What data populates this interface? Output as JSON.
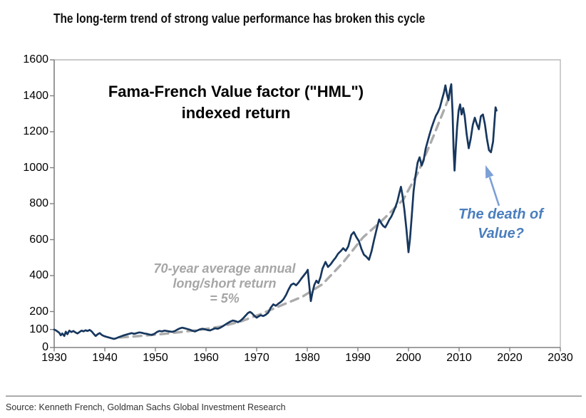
{
  "page": {
    "title": "The long-term trend of strong value performance has broken this cycle",
    "source": "Source: Kenneth French, Goldman Sachs Global Investment Research"
  },
  "chart_data": {
    "type": "line",
    "title_lines": [
      "Fama-French Value factor (\"HML\")",
      "indexed return"
    ],
    "xlabel": "",
    "ylabel": "",
    "xlim": [
      1930,
      2030
    ],
    "ylim": [
      0,
      1600
    ],
    "grid": false,
    "legend": "none",
    "x_ticks": [
      1930,
      1940,
      1950,
      1960,
      1970,
      1980,
      1990,
      2000,
      2010,
      2020,
      2030
    ],
    "y_ticks": [
      0,
      100,
      200,
      400,
      600,
      800,
      1000,
      1200,
      1400,
      1600
    ],
    "colors": {
      "hml_line": "#17375e",
      "trend_line": "#ababab",
      "blue_annotation_text": "#4a7ebe",
      "arrow": "#7c9fd6",
      "axis": "#808080",
      "plot_border": "#b9b9b9"
    },
    "annotations": [
      {
        "name": "trend-note",
        "lines": [
          "70-year average annual",
          "long/short return",
          "= 5%"
        ],
        "color": "#a6a6a6"
      },
      {
        "name": "death-of-value-note",
        "lines": [
          "The death of",
          "Value?"
        ],
        "color": "#4a7ebe",
        "arrow_to": [
          681,
          232
        ],
        "arrow_from": [
          700,
          289
        ]
      }
    ],
    "series": [
      {
        "name": "HML indexed return",
        "style": "solid",
        "color": "#17375e",
        "points": [
          [
            1930.0,
            100
          ],
          [
            1930.3,
            96
          ],
          [
            1930.6,
            90
          ],
          [
            1931.0,
            82
          ],
          [
            1931.3,
            68
          ],
          [
            1931.6,
            78
          ],
          [
            1932.0,
            64
          ],
          [
            1932.3,
            88
          ],
          [
            1932.6,
            74
          ],
          [
            1933.0,
            94
          ],
          [
            1933.4,
            86
          ],
          [
            1933.8,
            92
          ],
          [
            1934.2,
            84
          ],
          [
            1934.6,
            78
          ],
          [
            1935.0,
            86
          ],
          [
            1935.4,
            94
          ],
          [
            1935.8,
            90
          ],
          [
            1936.2,
            96
          ],
          [
            1936.6,
            92
          ],
          [
            1937.0,
            98
          ],
          [
            1937.4,
            90
          ],
          [
            1937.8,
            76
          ],
          [
            1938.2,
            64
          ],
          [
            1938.6,
            74
          ],
          [
            1939.0,
            80
          ],
          [
            1939.4,
            70
          ],
          [
            1939.8,
            64
          ],
          [
            1940.3,
            60
          ],
          [
            1940.8,
            56
          ],
          [
            1941.3,
            52
          ],
          [
            1941.8,
            48
          ],
          [
            1942.3,
            52
          ],
          [
            1942.8,
            58
          ],
          [
            1943.3,
            63
          ],
          [
            1943.8,
            68
          ],
          [
            1944.3,
            72
          ],
          [
            1944.8,
            76
          ],
          [
            1945.3,
            80
          ],
          [
            1945.8,
            76
          ],
          [
            1946.3,
            80
          ],
          [
            1946.8,
            84
          ],
          [
            1947.3,
            82
          ],
          [
            1947.8,
            78
          ],
          [
            1948.3,
            76
          ],
          [
            1948.8,
            72
          ],
          [
            1949.3,
            70
          ],
          [
            1949.8,
            76
          ],
          [
            1950.3,
            86
          ],
          [
            1950.8,
            92
          ],
          [
            1951.3,
            90
          ],
          [
            1951.8,
            94
          ],
          [
            1952.3,
            92
          ],
          [
            1952.8,
            89
          ],
          [
            1953.3,
            87
          ],
          [
            1953.8,
            91
          ],
          [
            1954.3,
            99
          ],
          [
            1954.8,
            106
          ],
          [
            1955.3,
            110
          ],
          [
            1955.8,
            107
          ],
          [
            1956.3,
            103
          ],
          [
            1956.8,
            99
          ],
          [
            1957.3,
            93
          ],
          [
            1957.8,
            89
          ],
          [
            1958.3,
            95
          ],
          [
            1958.8,
            101
          ],
          [
            1959.3,
            104
          ],
          [
            1959.8,
            101
          ],
          [
            1960.3,
            97
          ],
          [
            1960.8,
            95
          ],
          [
            1961.3,
            101
          ],
          [
            1961.8,
            107
          ],
          [
            1962.3,
            104
          ],
          [
            1962.8,
            110
          ],
          [
            1963.3,
            118
          ],
          [
            1963.8,
            127
          ],
          [
            1964.3,
            136
          ],
          [
            1964.8,
            144
          ],
          [
            1965.3,
            150
          ],
          [
            1965.8,
            147
          ],
          [
            1966.3,
            141
          ],
          [
            1966.8,
            149
          ],
          [
            1967.3,
            161
          ],
          [
            1967.8,
            177
          ],
          [
            1968.3,
            192
          ],
          [
            1968.7,
            198
          ],
          [
            1969.1,
            190
          ],
          [
            1969.5,
            178
          ],
          [
            1970.0,
            166
          ],
          [
            1970.4,
            173
          ],
          [
            1970.8,
            180
          ],
          [
            1971.3,
            175
          ],
          [
            1971.8,
            182
          ],
          [
            1972.3,
            194
          ],
          [
            1972.8,
            222
          ],
          [
            1973.3,
            240
          ],
          [
            1973.8,
            232
          ],
          [
            1974.3,
            244
          ],
          [
            1974.8,
            254
          ],
          [
            1975.3,
            268
          ],
          [
            1975.8,
            292
          ],
          [
            1976.3,
            322
          ],
          [
            1976.8,
            348
          ],
          [
            1977.3,
            356
          ],
          [
            1977.8,
            346
          ],
          [
            1978.3,
            362
          ],
          [
            1978.8,
            382
          ],
          [
            1979.3,
            400
          ],
          [
            1979.8,
            418
          ],
          [
            1980.1,
            432
          ],
          [
            1980.4,
            345
          ],
          [
            1980.7,
            258
          ],
          [
            1981.0,
            302
          ],
          [
            1981.4,
            348
          ],
          [
            1981.8,
            372
          ],
          [
            1982.2,
            358
          ],
          [
            1982.6,
            390
          ],
          [
            1983.0,
            438
          ],
          [
            1983.6,
            476
          ],
          [
            1984.1,
            448
          ],
          [
            1984.6,
            462
          ],
          [
            1985.1,
            482
          ],
          [
            1985.6,
            500
          ],
          [
            1986.1,
            522
          ],
          [
            1986.6,
            536
          ],
          [
            1987.1,
            552
          ],
          [
            1987.6,
            538
          ],
          [
            1988.1,
            562
          ],
          [
            1988.7,
            626
          ],
          [
            1989.2,
            642
          ],
          [
            1989.7,
            614
          ],
          [
            1990.2,
            592
          ],
          [
            1990.7,
            548
          ],
          [
            1991.2,
            516
          ],
          [
            1991.7,
            504
          ],
          [
            1992.2,
            488
          ],
          [
            1992.7,
            536
          ],
          [
            1993.2,
            598
          ],
          [
            1993.7,
            658
          ],
          [
            1994.2,
            712
          ],
          [
            1994.6,
            692
          ],
          [
            1995.0,
            676
          ],
          [
            1995.4,
            668
          ],
          [
            1995.8,
            688
          ],
          [
            1996.2,
            710
          ],
          [
            1996.6,
            728
          ],
          [
            1997.0,
            752
          ],
          [
            1997.4,
            780
          ],
          [
            1997.8,
            812
          ],
          [
            1998.2,
            860
          ],
          [
            1998.5,
            894
          ],
          [
            1998.8,
            848
          ],
          [
            1999.2,
            764
          ],
          [
            1999.6,
            654
          ],
          [
            2000.0,
            530
          ],
          [
            2000.3,
            604
          ],
          [
            2000.6,
            716
          ],
          [
            2001.0,
            868
          ],
          [
            2001.4,
            956
          ],
          [
            2001.8,
            1028
          ],
          [
            2002.2,
            1058
          ],
          [
            2002.6,
            1012
          ],
          [
            2003.0,
            1042
          ],
          [
            2003.4,
            1106
          ],
          [
            2003.8,
            1148
          ],
          [
            2004.2,
            1188
          ],
          [
            2004.6,
            1226
          ],
          [
            2005.0,
            1258
          ],
          [
            2005.4,
            1288
          ],
          [
            2005.8,
            1308
          ],
          [
            2006.2,
            1334
          ],
          [
            2006.6,
            1378
          ],
          [
            2007.0,
            1418
          ],
          [
            2007.3,
            1458
          ],
          [
            2007.6,
            1408
          ],
          [
            2007.9,
            1376
          ],
          [
            2008.2,
            1432
          ],
          [
            2008.45,
            1464
          ],
          [
            2008.7,
            1310
          ],
          [
            2008.9,
            1108
          ],
          [
            2009.1,
            984
          ],
          [
            2009.35,
            1112
          ],
          [
            2009.6,
            1226
          ],
          [
            2009.9,
            1318
          ],
          [
            2010.2,
            1352
          ],
          [
            2010.5,
            1296
          ],
          [
            2010.8,
            1332
          ],
          [
            2011.1,
            1288
          ],
          [
            2011.5,
            1186
          ],
          [
            2011.9,
            1108
          ],
          [
            2012.3,
            1162
          ],
          [
            2012.7,
            1238
          ],
          [
            2013.1,
            1278
          ],
          [
            2013.5,
            1242
          ],
          [
            2013.9,
            1214
          ],
          [
            2014.3,
            1286
          ],
          [
            2014.7,
            1296
          ],
          [
            2015.1,
            1242
          ],
          [
            2015.5,
            1162
          ],
          [
            2015.9,
            1098
          ],
          [
            2016.3,
            1086
          ],
          [
            2016.7,
            1144
          ],
          [
            2017.0,
            1258
          ],
          [
            2017.2,
            1336
          ],
          [
            2017.4,
            1318
          ]
        ]
      },
      {
        "name": "70-year average annual long/short return = 5% trend",
        "style": "dashed",
        "color": "#ababab",
        "points": [
          [
            1943,
            56
          ],
          [
            1947,
            64
          ],
          [
            1951,
            74
          ],
          [
            1955,
            86
          ],
          [
            1959,
            99
          ],
          [
            1963,
            117
          ],
          [
            1967,
            146
          ],
          [
            1971,
            188
          ],
          [
            1975,
            236
          ],
          [
            1979,
            282
          ],
          [
            1983,
            352
          ],
          [
            1987,
            470
          ],
          [
            1991,
            612
          ],
          [
            1995,
            712
          ],
          [
            1999,
            824
          ],
          [
            2002,
            980
          ],
          [
            2005,
            1180
          ],
          [
            2008,
            1390
          ]
        ]
      }
    ]
  }
}
